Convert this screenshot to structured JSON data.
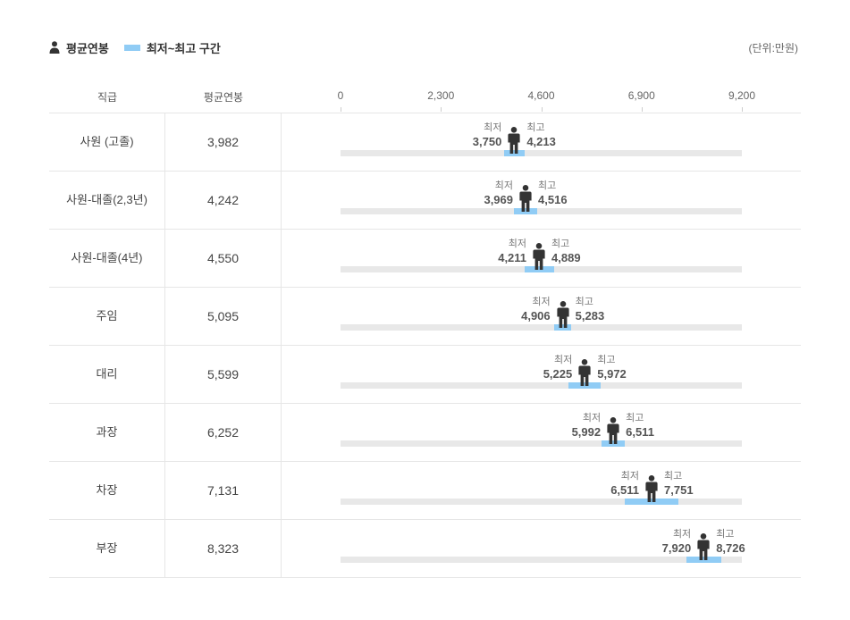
{
  "legend": {
    "avg_label": "평균연봉",
    "range_label": "최저~최고 구간",
    "avg_icon": "person-icon",
    "range_color": "#90ccf5"
  },
  "unit": "(단위:만원)",
  "headers": {
    "grade": "직급",
    "avg": "평균연봉"
  },
  "labels": {
    "min": "최저",
    "max": "최고"
  },
  "chart_data": {
    "type": "range-bar",
    "x_ticks": [
      "0",
      "2,300",
      "4,600",
      "6,900",
      "9,200"
    ],
    "xlim": [
      0,
      9200
    ],
    "unit": "(단위:만원)",
    "colors": {
      "track": "#e8e8e8",
      "range": "#90ccf5",
      "icon": "#333333"
    },
    "rows": [
      {
        "grade": "사원 (고졸)",
        "avg": 3982,
        "avg_text": "3,982",
        "min": 3750,
        "min_text": "3,750",
        "max": 4213,
        "max_text": "4,213"
      },
      {
        "grade": "사원-대졸(2,3년)",
        "avg": 4242,
        "avg_text": "4,242",
        "min": 3969,
        "min_text": "3,969",
        "max": 4516,
        "max_text": "4,516"
      },
      {
        "grade": "사원-대졸(4년)",
        "avg": 4550,
        "avg_text": "4,550",
        "min": 4211,
        "min_text": "4,211",
        "max": 4889,
        "max_text": "4,889"
      },
      {
        "grade": "주임",
        "avg": 5095,
        "avg_text": "5,095",
        "min": 4906,
        "min_text": "4,906",
        "max": 5283,
        "max_text": "5,283"
      },
      {
        "grade": "대리",
        "avg": 5599,
        "avg_text": "5,599",
        "min": 5225,
        "min_text": "5,225",
        "max": 5972,
        "max_text": "5,972"
      },
      {
        "grade": "과장",
        "avg": 6252,
        "avg_text": "6,252",
        "min": 5992,
        "min_text": "5,992",
        "max": 6511,
        "max_text": "6,511"
      },
      {
        "grade": "차장",
        "avg": 7131,
        "avg_text": "7,131",
        "min": 6511,
        "min_text": "6,511",
        "max": 7751,
        "max_text": "7,751"
      },
      {
        "grade": "부장",
        "avg": 8323,
        "avg_text": "8,323",
        "min": 7920,
        "min_text": "7,920",
        "max": 8726,
        "max_text": "8,726"
      }
    ]
  }
}
